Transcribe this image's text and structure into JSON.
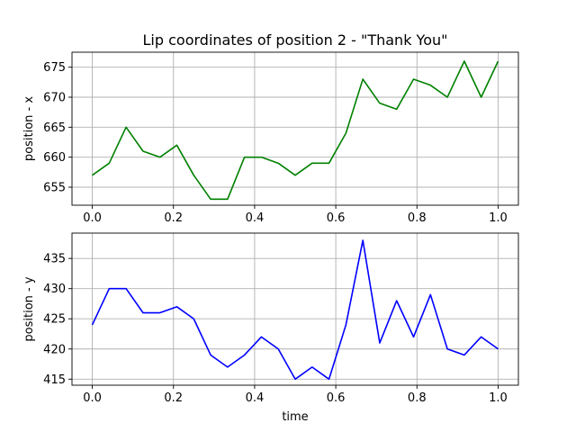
{
  "chart_data": [
    {
      "type": "line",
      "title": "Lip coordinates of position 2 - \"Thank You\"",
      "xlabel": "",
      "ylabel": "position - x",
      "xlim": [
        -0.05,
        1.05
      ],
      "ylim": [
        652,
        677.5
      ],
      "xticks": [
        0.0,
        0.2,
        0.4,
        0.6,
        0.8,
        1.0
      ],
      "xtick_labels": [
        "0.0",
        "0.2",
        "0.4",
        "0.6",
        "0.8",
        "1.0"
      ],
      "yticks": [
        655,
        660,
        665,
        670,
        675
      ],
      "ytick_labels": [
        "655",
        "660",
        "665",
        "670",
        "675"
      ],
      "grid": true,
      "color": "#008000",
      "series": [
        {
          "x": [
            0.0,
            0.0417,
            0.0833,
            0.125,
            0.1667,
            0.2083,
            0.25,
            0.2917,
            0.3333,
            0.375,
            0.4167,
            0.4583,
            0.5,
            0.5417,
            0.5833,
            0.625,
            0.6667,
            0.7083,
            0.75,
            0.7917,
            0.8333,
            0.875,
            0.9167,
            0.9583,
            1.0
          ],
          "values": [
            657,
            659,
            665,
            661,
            660,
            662,
            657,
            653,
            653,
            660,
            660,
            659,
            657,
            659,
            659,
            664,
            673,
            669,
            668,
            673,
            672,
            670,
            676,
            670,
            676
          ]
        }
      ]
    },
    {
      "type": "line",
      "title": "",
      "xlabel": "time",
      "ylabel": "position - y",
      "xlim": [
        -0.05,
        1.05
      ],
      "ylim": [
        414,
        439.2
      ],
      "xticks": [
        0.0,
        0.2,
        0.4,
        0.6,
        0.8,
        1.0
      ],
      "xtick_labels": [
        "0.0",
        "0.2",
        "0.4",
        "0.6",
        "0.8",
        "1.0"
      ],
      "yticks": [
        415,
        420,
        425,
        430,
        435
      ],
      "ytick_labels": [
        "415",
        "420",
        "425",
        "430",
        "435"
      ],
      "grid": true,
      "color": "#0000ff",
      "series": [
        {
          "x": [
            0.0,
            0.0417,
            0.0833,
            0.125,
            0.1667,
            0.2083,
            0.25,
            0.2917,
            0.3333,
            0.375,
            0.4167,
            0.4583,
            0.5,
            0.5417,
            0.5833,
            0.625,
            0.6667,
            0.7083,
            0.75,
            0.7917,
            0.8333,
            0.875,
            0.9167,
            0.9583,
            1.0
          ],
          "values": [
            424,
            430,
            430,
            426,
            426,
            427,
            425,
            419,
            417,
            419,
            422,
            420,
            415,
            417,
            415,
            424,
            438,
            421,
            428,
            422,
            429,
            420,
            419,
            422,
            420
          ]
        }
      ]
    }
  ]
}
